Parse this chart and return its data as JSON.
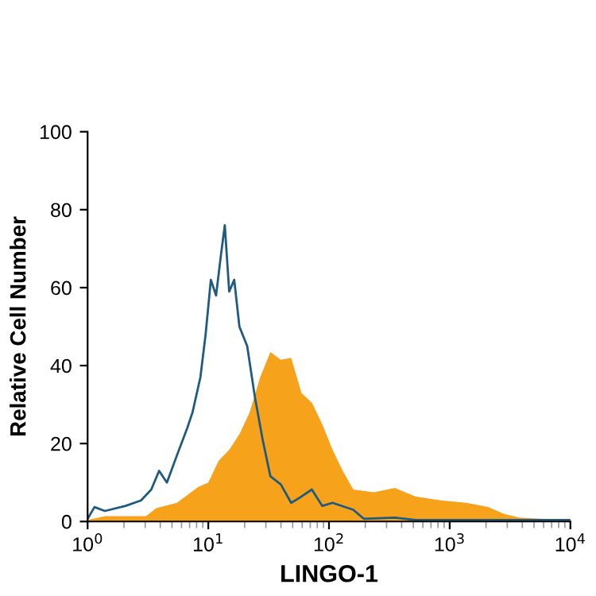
{
  "chart_data": {
    "type": "area",
    "xlabel": "LINGO-1",
    "ylabel": "Relative Cell Number",
    "log": "x",
    "xlim": [
      1,
      10000
    ],
    "ylim": [
      0,
      100
    ],
    "xticks": [
      {
        "value": 1,
        "label": "10$^{0}$"
      },
      {
        "value": 10,
        "label": "10$^{1}$"
      },
      {
        "value": 100,
        "label": "10$^{2}$"
      },
      {
        "value": 1000,
        "label": "10$^{3}$"
      },
      {
        "value": 10000,
        "label": "10$^{4}$"
      }
    ],
    "yticks": [
      0,
      20,
      40,
      60,
      80,
      100
    ],
    "grid": false,
    "legend": false,
    "series": [
      {
        "color": "#f7a21b",
        "x": [
          1,
          1.4,
          3.05,
          3.7,
          5.5,
          8.2,
          10,
          12.2,
          14.9,
          18.1,
          22,
          26.9,
          32.7,
          39.9,
          48.6,
          59.2,
          72.1,
          87.9,
          107,
          130,
          159,
          236,
          351,
          521,
          849,
          1380,
          2080,
          2800,
          3760,
          5600,
          10000
        ],
        "values": [
          0.4,
          1.4,
          1.4,
          3.4,
          4.8,
          8.8,
          10,
          15.6,
          18.4,
          22.4,
          28,
          37,
          43.5,
          41.5,
          42,
          33,
          30.5,
          25,
          18.4,
          13,
          8.2,
          7.5,
          8.6,
          6.4,
          5.4,
          4.8,
          3.7,
          2,
          1,
          0.7,
          0.4
        ]
      },
      {
        "type": "line",
        "color": "#1f5a80",
        "x": [
          1,
          1.14,
          1.39,
          2.06,
          2.77,
          3.37,
          3.91,
          4.54,
          5.5,
          6.7,
          7.4,
          8.6,
          9.5,
          10.5,
          11.6,
          12.8,
          13.7,
          14.9,
          16.4,
          18.1,
          21,
          24.3,
          28.2,
          32.7,
          39.9,
          48.6,
          56.4,
          72.1,
          87.9,
          107,
          159,
          194,
          351,
          521,
          3760,
          10000
        ],
        "values": [
          0.7,
          3.7,
          2.7,
          4,
          5.4,
          8.2,
          13,
          10,
          17,
          24,
          28,
          37,
          48,
          62,
          58,
          69,
          76,
          59,
          62,
          50,
          45,
          32,
          21,
          11.6,
          9.5,
          4.8,
          6,
          8.2,
          4,
          4.8,
          3,
          0.7,
          1,
          0.4,
          0.4,
          0.4
        ]
      }
    ]
  }
}
